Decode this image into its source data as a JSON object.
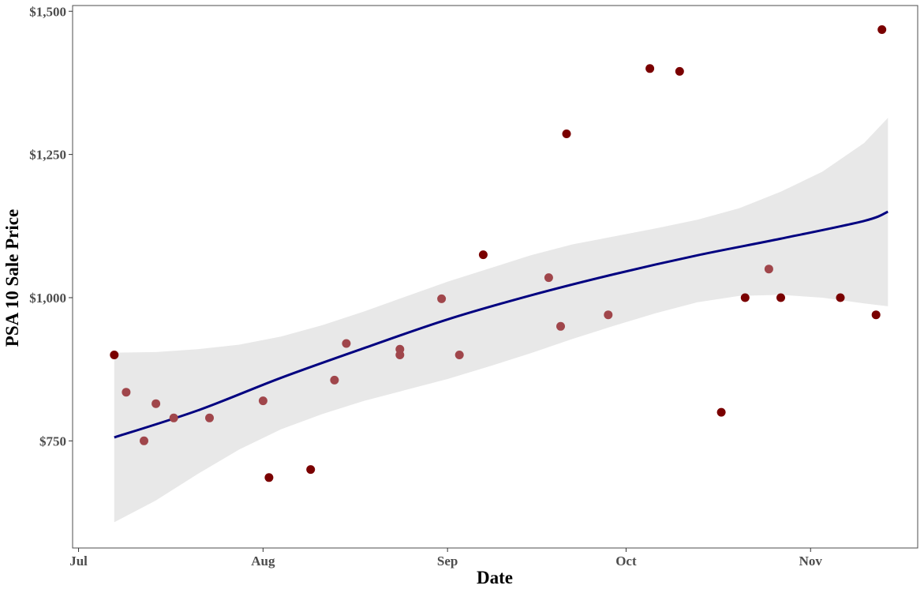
{
  "chart_data": {
    "type": "scatter",
    "title": "",
    "xlabel": "Date",
    "ylabel": "PSA 10 Sale Price",
    "x_type": "date",
    "xlim": [
      "2020-06-30",
      "2020-11-19"
    ],
    "ylim": [
      563,
      1510
    ],
    "x_ticks": [
      {
        "value": "2020-07-01",
        "label": "Jul"
      },
      {
        "value": "2020-08-01",
        "label": "Aug"
      },
      {
        "value": "2020-09-01",
        "label": "Sep"
      },
      {
        "value": "2020-10-01",
        "label": "Oct"
      },
      {
        "value": "2020-11-01",
        "label": "Nov"
      }
    ],
    "y_ticks": [
      {
        "value": 750,
        "label": "$750"
      },
      {
        "value": 1000,
        "label": "$1,000"
      },
      {
        "value": 1250,
        "label": "$1,250"
      },
      {
        "value": 1500,
        "label": "$1,500"
      }
    ],
    "grid": false,
    "legend": "none",
    "colors": {
      "point_dark": "#7a0000",
      "point_light": "#a0464b",
      "trend": "#000080",
      "band": "#e8e8e8"
    },
    "points": [
      {
        "x": "2020-07-07",
        "y": 900,
        "shade": "dark"
      },
      {
        "x": "2020-07-09",
        "y": 835,
        "shade": "light"
      },
      {
        "x": "2020-07-12",
        "y": 750,
        "shade": "light"
      },
      {
        "x": "2020-07-14",
        "y": 815,
        "shade": "light"
      },
      {
        "x": "2020-07-17",
        "y": 790,
        "shade": "light"
      },
      {
        "x": "2020-07-23",
        "y": 790,
        "shade": "light"
      },
      {
        "x": "2020-08-01",
        "y": 820,
        "shade": "light"
      },
      {
        "x": "2020-08-02",
        "y": 686,
        "shade": "dark"
      },
      {
        "x": "2020-08-09",
        "y": 700,
        "shade": "dark"
      },
      {
        "x": "2020-08-13",
        "y": 856,
        "shade": "light"
      },
      {
        "x": "2020-08-15",
        "y": 920,
        "shade": "light"
      },
      {
        "x": "2020-08-24",
        "y": 910,
        "shade": "light"
      },
      {
        "x": "2020-08-24",
        "y": 900,
        "shade": "light"
      },
      {
        "x": "2020-08-31",
        "y": 998,
        "shade": "light"
      },
      {
        "x": "2020-09-03",
        "y": 900,
        "shade": "light"
      },
      {
        "x": "2020-09-07",
        "y": 1075,
        "shade": "dark"
      },
      {
        "x": "2020-09-18",
        "y": 1035,
        "shade": "light"
      },
      {
        "x": "2020-09-20",
        "y": 950,
        "shade": "light"
      },
      {
        "x": "2020-09-21",
        "y": 1286,
        "shade": "dark"
      },
      {
        "x": "2020-09-28",
        "y": 970,
        "shade": "light"
      },
      {
        "x": "2020-10-05",
        "y": 1400,
        "shade": "dark"
      },
      {
        "x": "2020-10-10",
        "y": 1395,
        "shade": "dark"
      },
      {
        "x": "2020-10-17",
        "y": 800,
        "shade": "dark"
      },
      {
        "x": "2020-10-21",
        "y": 1000,
        "shade": "dark"
      },
      {
        "x": "2020-10-25",
        "y": 1050,
        "shade": "light"
      },
      {
        "x": "2020-10-27",
        "y": 1000,
        "shade": "dark"
      },
      {
        "x": "2020-11-06",
        "y": 1000,
        "shade": "dark"
      },
      {
        "x": "2020-11-12",
        "y": 970,
        "shade": "dark"
      },
      {
        "x": "2020-11-13",
        "y": 1468,
        "shade": "dark"
      }
    ],
    "trend": {
      "method": "loess",
      "fit": [
        {
          "x": "2020-07-07",
          "y": 756
        },
        {
          "x": "2020-07-21",
          "y": 803
        },
        {
          "x": "2020-08-04",
          "y": 860
        },
        {
          "x": "2020-08-18",
          "y": 912
        },
        {
          "x": "2020-09-01",
          "y": 962
        },
        {
          "x": "2020-09-15",
          "y": 1004
        },
        {
          "x": "2020-09-29",
          "y": 1041
        },
        {
          "x": "2020-10-13",
          "y": 1074
        },
        {
          "x": "2020-10-27",
          "y": 1103
        },
        {
          "x": "2020-11-10",
          "y": 1134
        },
        {
          "x": "2020-11-14",
          "y": 1150
        }
      ],
      "upper": [
        {
          "x": "2020-07-07",
          "y": 904
        },
        {
          "x": "2020-07-14",
          "y": 905
        },
        {
          "x": "2020-07-21",
          "y": 910
        },
        {
          "x": "2020-07-28",
          "y": 918
        },
        {
          "x": "2020-08-04",
          "y": 932
        },
        {
          "x": "2020-08-11",
          "y": 952
        },
        {
          "x": "2020-08-18",
          "y": 976
        },
        {
          "x": "2020-08-25",
          "y": 1002
        },
        {
          "x": "2020-09-01",
          "y": 1028
        },
        {
          "x": "2020-09-08",
          "y": 1051
        },
        {
          "x": "2020-09-15",
          "y": 1074
        },
        {
          "x": "2020-09-22",
          "y": 1093
        },
        {
          "x": "2020-09-29",
          "y": 1107
        },
        {
          "x": "2020-10-06",
          "y": 1121
        },
        {
          "x": "2020-10-13",
          "y": 1136
        },
        {
          "x": "2020-10-20",
          "y": 1156
        },
        {
          "x": "2020-10-27",
          "y": 1185
        },
        {
          "x": "2020-11-03",
          "y": 1220
        },
        {
          "x": "2020-11-10",
          "y": 1270
        },
        {
          "x": "2020-11-14",
          "y": 1314
        }
      ],
      "lower": [
        {
          "x": "2020-07-07",
          "y": 608
        },
        {
          "x": "2020-07-14",
          "y": 646
        },
        {
          "x": "2020-07-21",
          "y": 692
        },
        {
          "x": "2020-07-28",
          "y": 735
        },
        {
          "x": "2020-08-04",
          "y": 770
        },
        {
          "x": "2020-08-11",
          "y": 797
        },
        {
          "x": "2020-08-18",
          "y": 820
        },
        {
          "x": "2020-08-25",
          "y": 839
        },
        {
          "x": "2020-09-01",
          "y": 858
        },
        {
          "x": "2020-09-08",
          "y": 880
        },
        {
          "x": "2020-09-15",
          "y": 903
        },
        {
          "x": "2020-09-22",
          "y": 928
        },
        {
          "x": "2020-09-29",
          "y": 951
        },
        {
          "x": "2020-10-06",
          "y": 973
        },
        {
          "x": "2020-10-13",
          "y": 992
        },
        {
          "x": "2020-10-20",
          "y": 1003
        },
        {
          "x": "2020-10-27",
          "y": 1005
        },
        {
          "x": "2020-11-03",
          "y": 1000
        },
        {
          "x": "2020-11-10",
          "y": 990
        },
        {
          "x": "2020-11-14",
          "y": 985
        }
      ]
    }
  }
}
